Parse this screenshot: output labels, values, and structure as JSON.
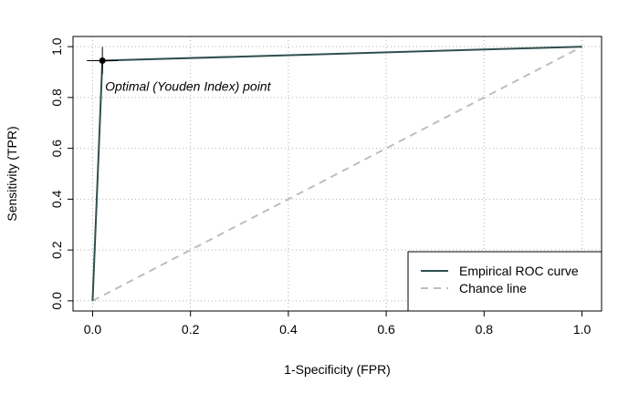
{
  "chart_data": {
    "type": "line",
    "xlabel": "1-Specificity (FPR)",
    "ylabel": "Sensitivity (TPR)",
    "xlim": [
      -0.04,
      1.04
    ],
    "ylim": [
      -0.04,
      1.04
    ],
    "x_ticks": [
      "0.0",
      "0.2",
      "0.4",
      "0.6",
      "0.8",
      "1.0"
    ],
    "y_ticks": [
      "0.0",
      "0.2",
      "0.4",
      "0.6",
      "0.8",
      "1.0"
    ],
    "grid": true,
    "grid_style": "dotted",
    "legend_position": "bottom-right",
    "series": [
      {
        "name": "Empirical ROC curve",
        "color": "#2f4f4f",
        "style": "solid",
        "points": [
          [
            0.0,
            0.0
          ],
          [
            0.02,
            0.945
          ],
          [
            1.0,
            1.0
          ]
        ]
      },
      {
        "name": "Chance line",
        "color": "#bebebe",
        "style": "dashed",
        "points": [
          [
            0.0,
            0.0
          ],
          [
            1.0,
            1.0
          ]
        ]
      }
    ],
    "optimal_point": {
      "x": 0.02,
      "y": 0.945,
      "label": "Optimal (Youden Index) point",
      "color": "#000000"
    }
  }
}
